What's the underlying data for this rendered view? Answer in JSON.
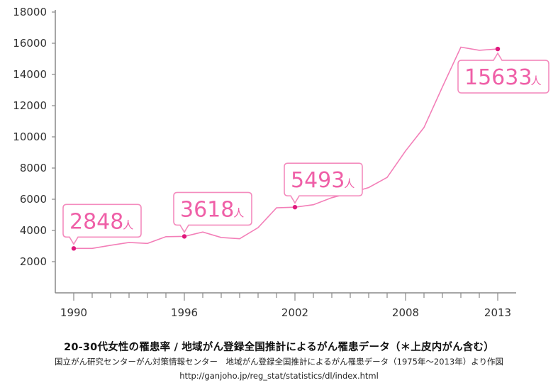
{
  "chart_data": {
    "type": "line",
    "title": "",
    "xlabel": "",
    "ylabel": "",
    "xlim": [
      1989,
      2014
    ],
    "ylim": [
      0,
      18000
    ],
    "y_ticks": [
      2000,
      4000,
      6000,
      8000,
      10000,
      12000,
      14000,
      16000,
      18000
    ],
    "x_ticks": [
      1990,
      1996,
      2002,
      2008,
      2013
    ],
    "grid": false,
    "series": [
      {
        "name": "",
        "color": "#f37fb8",
        "x": [
          1990,
          1991,
          1992,
          1993,
          1994,
          1995,
          1996,
          1997,
          1998,
          1999,
          2000,
          2001,
          2002,
          2003,
          2004,
          2005,
          2006,
          2007,
          2008,
          2009,
          2010,
          2011,
          2012,
          2013
        ],
        "y": [
          2848,
          2850,
          3050,
          3230,
          3170,
          3600,
          3618,
          3900,
          3550,
          3470,
          4180,
          5450,
          5493,
          5650,
          6100,
          6400,
          6750,
          7400,
          9100,
          10600,
          13200,
          15750,
          15550,
          15633
        ]
      }
    ],
    "annotations": [
      {
        "x": 1990,
        "y": 2848,
        "value": "2848",
        "unit": "人"
      },
      {
        "x": 1996,
        "y": 3618,
        "value": "3618",
        "unit": "人"
      },
      {
        "x": 2002,
        "y": 5493,
        "value": "5493",
        "unit": "人"
      },
      {
        "x": 2013,
        "y": 15633,
        "value": "15633",
        "unit": "人"
      }
    ]
  },
  "caption": {
    "title": "20-30代女性の罹患率 / 地域がん登録全国推計によるがん罹患データ（＊上皮内がん含む）",
    "source": "国立がん研究センターがん対策情報センター　地域がん登録全国推計によるがん罹患データ（1975年〜2013年）より作図",
    "url": "http://ganjoho.jp/reg_stat/statistics/dl/index.html"
  }
}
